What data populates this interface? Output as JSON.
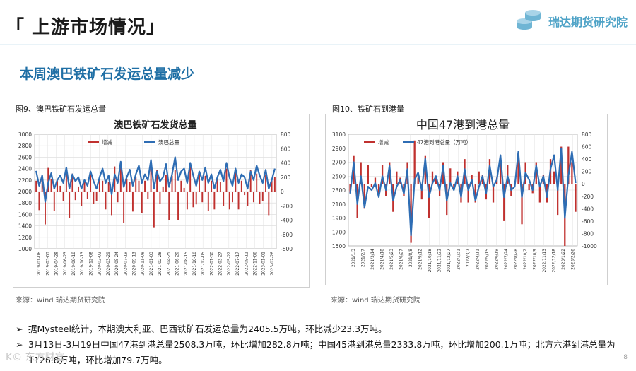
{
  "header": {
    "title": "「 上游市场情况」",
    "logo_text": "瑞达期货研究院"
  },
  "subtitle": "本周澳巴铁矿石发运总量减少",
  "figures": [
    {
      "caption": "图9、澳巴铁矿石发运总量",
      "source": "来源：wind    瑞达期货研究院"
    },
    {
      "caption": "图10、铁矿石到港量",
      "source": "来源：wind    瑞达期货研究院"
    }
  ],
  "bullets": [
    "据Mysteel统计，本期澳大利亚、巴西铁矿石发运总量为2405.5万吨，环比减少23.3万吨。",
    "3月13日-3月19日中国47港到港总量2508.3万吨，环比增加282.8万吨；中国45港到港总量2333.8万吨，环比增加200.1万吨；北方六港到港总量为1126.8万吨，环比增加79.7万吨。"
  ],
  "page_number": "8",
  "watermark": "K© 东方财富",
  "colors": {
    "bar": "#c0312f",
    "line": "#2e6db4",
    "subtitle": "#1f6fa5",
    "logo": "#4fa3c7"
  },
  "chart_data": [
    {
      "type": "bar+line",
      "title": "澳巴铁矿石发货总量",
      "legend": [
        "增减",
        "澳巴总量"
      ],
      "ylim_left": [
        1000,
        3000
      ],
      "yticks_left": [
        "3000",
        "2800",
        "2600",
        "2400",
        "2200",
        "2000",
        "1800",
        "1600",
        "1400",
        "1200",
        "1000"
      ],
      "ylim_right": [
        -800,
        800
      ],
      "yticks_right": [
        "800",
        "600",
        "400",
        "200",
        "0",
        "-200",
        "-400",
        "-600",
        "-800"
      ],
      "x_ticks": [
        "2019-01-06",
        "2019-03-03",
        "2019-04-28",
        "2019-06-23",
        "2019-08-18",
        "2019-10-13",
        "2019-12-08",
        "2020-02-02",
        "2020-03-29",
        "2020-05-24",
        "2020-07-19",
        "2020-09-13",
        "2020-11-08",
        "2021-01-03",
        "2021-02-28",
        "2021-04-25",
        "2021-06-20",
        "2021-08-15",
        "2021-10-10",
        "2021-12-05",
        "2022-01-30",
        "2022-03-27",
        "2022-05-22",
        "2022-07-17",
        "2022-09-11",
        "2022-11-06",
        "2023-01-01",
        "2023-02-26"
      ],
      "series_line": [
        2360,
        2100,
        2280,
        1820,
        2150,
        2320,
        2050,
        2200,
        2280,
        2150,
        2420,
        2050,
        2300,
        2180,
        2250,
        2050,
        2200,
        2100,
        2350,
        2180,
        2050,
        2250,
        2400,
        2150,
        2280,
        1950,
        2300,
        2150,
        2520,
        2080,
        2250,
        2380,
        2100,
        2300,
        2450,
        2150,
        2300,
        2200,
        2550,
        2050,
        2350,
        2180,
        2250,
        2480,
        2080,
        2300,
        2600,
        2200,
        2350,
        2400,
        2150,
        2500,
        2280,
        2100,
        2350,
        2200,
        2420,
        2150,
        2300,
        2050,
        2250,
        2380,
        2180,
        2500,
        2250,
        2100,
        2400,
        2150,
        2300,
        2250,
        2050,
        2350,
        2200,
        2450,
        2280,
        2150,
        2380,
        2050,
        2200,
        2400
      ],
      "series_bar": [
        150,
        -260,
        180,
        -460,
        330,
        170,
        -270,
        150,
        80,
        -130,
        270,
        -370,
        250,
        -120,
        70,
        -200,
        150,
        -100,
        250,
        -170,
        -130,
        200,
        150,
        -250,
        130,
        -330,
        350,
        -150,
        370,
        -440,
        170,
        130,
        -280,
        200,
        150,
        -300,
        150,
        -100,
        350,
        -500,
        300,
        -170,
        70,
        230,
        -400,
        220,
        300,
        -400,
        150,
        50,
        -250,
        350,
        -220,
        -180,
        250,
        -150,
        220,
        -270,
        150,
        -250,
        200,
        130,
        -200,
        320,
        -250,
        -150,
        300,
        -250,
        150,
        -50,
        -200,
        300,
        -150,
        250,
        -170,
        -130,
        230,
        -330,
        150,
        200
      ]
    },
    {
      "type": "bar+line",
      "title": "中国47港到港总量",
      "legend": [
        "增减",
        "47港到港总量（万吨）"
      ],
      "ylim_left": [
        1500,
        3100
      ],
      "yticks_left": [
        "3100",
        "2900",
        "2700",
        "2500",
        "2300",
        "2100",
        "1900",
        "1700",
        "1500"
      ],
      "ylim_right": [
        -1000,
        800
      ],
      "yticks_right": [
        "800",
        "600",
        "400",
        "200",
        "0",
        "-200",
        "-400",
        "-600",
        "-800",
        "-1000"
      ],
      "x_ticks": [
        "2021/1/3",
        "2021/2/7",
        "2021/3/14",
        "2021/4/18",
        "2021/5/23",
        "2021/6/27",
        "2021/8/8",
        "2021/9/12",
        "2021/10/18",
        "2021/11/22",
        "2021/12/27",
        "2022/1/31",
        "2022/3/7",
        "2022/4/11",
        "2022/5/15",
        "2022/6/19",
        "2022/7/24",
        "2022/8/28",
        "2022/10/2",
        "2022/10/9",
        "2022/11/13",
        "2022/12/18",
        "2023/1/22",
        "2023/2/26"
      ],
      "series_line": [
        2250,
        2700,
        2100,
        2500,
        2050,
        2350,
        2300,
        2400,
        2200,
        2500,
        2300,
        2650,
        2150,
        2350,
        2450,
        2250,
        2600,
        1650,
        2450,
        2550,
        2300,
        2750,
        2200,
        2400,
        2500,
        2300,
        2650,
        2150,
        2400,
        2300,
        2500,
        2200,
        2600,
        2300,
        2450,
        2150,
        2350,
        2500,
        2250,
        2650,
        2350,
        2450,
        2800,
        2200,
        2500,
        2300,
        2350,
        2850,
        2200,
        2550,
        2450,
        2300,
        2650,
        2350,
        2500,
        2200,
        2600,
        2800,
        2300,
        2900,
        1900,
        2500,
        2850,
        2400
      ],
      "series_bar": [
        -150,
        450,
        -550,
        350,
        -400,
        300,
        -50,
        100,
        -200,
        300,
        -200,
        350,
        -450,
        200,
        100,
        -200,
        350,
        -950,
        700,
        100,
        -250,
        450,
        -550,
        200,
        100,
        -200,
        350,
        -500,
        250,
        -100,
        200,
        -300,
        400,
        -300,
        150,
        -300,
        200,
        150,
        -250,
        400,
        -300,
        100,
        350,
        -600,
        300,
        -200,
        50,
        500,
        -650,
        350,
        -100,
        -150,
        350,
        -300,
        150,
        -300,
        400,
        200,
        -500,
        600,
        -1000,
        600,
        350,
        -450
      ]
    }
  ]
}
